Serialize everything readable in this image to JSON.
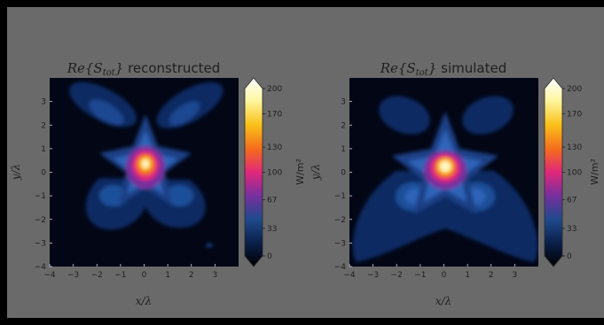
{
  "colors": {
    "frame": "#000000",
    "panel_background": "#6a6a6a",
    "axes_background": "#020615",
    "text": "#1e1e1e",
    "colormap": [
      "#000000",
      "#0a1e46",
      "#1f4a8c",
      "#7a2f9e",
      "#e0287a",
      "#f46a1e",
      "#f9c018",
      "#fff6a0",
      "#ffffff"
    ]
  },
  "chart_data": [
    {
      "type": "heatmap",
      "title_math": "Re{S",
      "title_sub": "tot",
      "title_math_close": "}",
      "title_text": " reconstructed",
      "xlabel": "x/λ",
      "ylabel": "y/λ",
      "xlim": [
        -4,
        4
      ],
      "ylim": [
        -4,
        4
      ],
      "xticks": [
        "−4",
        "−3",
        "−2",
        "−1",
        "0",
        "1",
        "2",
        "3"
      ],
      "yticks": [
        "−4",
        "−3",
        "−2",
        "−1",
        "0",
        "1",
        "2",
        "3"
      ],
      "grid": false,
      "colorbar": {
        "label": "W/m²",
        "ticks": [
          "0",
          "33",
          "67",
          "100",
          "130",
          "170",
          "200"
        ],
        "tick_values": [
          0,
          33,
          67,
          100,
          130,
          170,
          200
        ],
        "range": [
          0,
          200
        ]
      },
      "peak": {
        "x": 0.0,
        "y": 0.3,
        "value": 200
      }
    },
    {
      "type": "heatmap",
      "title_math": "Re{S",
      "title_sub": "tot",
      "title_math_close": "}",
      "title_text": " simulated",
      "xlabel": "x/λ",
      "ylabel": "y/λ",
      "xlim": [
        -4,
        4
      ],
      "ylim": [
        -4,
        4
      ],
      "xticks": [
        "−4",
        "−3",
        "−2",
        "−1",
        "0",
        "1",
        "2",
        "3"
      ],
      "yticks": [
        "−4",
        "−3",
        "−2",
        "−1",
        "0",
        "1",
        "2",
        "3"
      ],
      "grid": false,
      "colorbar": {
        "label": "W/m²",
        "ticks": [
          "0",
          "33",
          "67",
          "100",
          "130",
          "170",
          "200"
        ],
        "tick_values": [
          0,
          33,
          67,
          100,
          130,
          170,
          200
        ],
        "range": [
          0,
          200
        ]
      },
      "peak": {
        "x": 0.0,
        "y": -0.2,
        "value": 200
      }
    }
  ]
}
